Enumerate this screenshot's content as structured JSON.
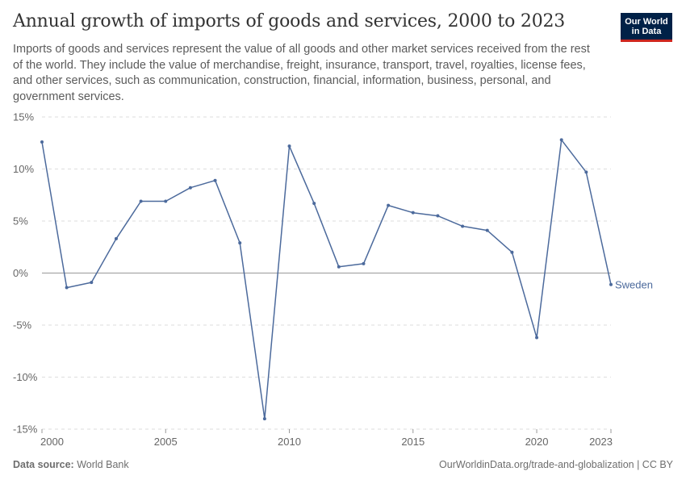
{
  "title": "Annual growth of imports of goods and services, 2000 to 2023",
  "subtitle": "Imports of goods and services represent the value of all goods and other market services received from the rest of the world. They include the value of merchandise, freight, insurance, transport, travel, royalties, license fees, and other services, such as communication, construction, financial, information, business, personal, and government services.",
  "logo": {
    "line1": "Our World",
    "line2": "in Data",
    "bg_color": "#002147",
    "accent_color": "#ce261e"
  },
  "footer": {
    "source_label": "Data source:",
    "source_value": "World Bank",
    "url_text": "OurWorldinData.org/trade-and-globalization | CC BY"
  },
  "colors": {
    "series": "#4c6a9c",
    "grid": "#dddddd",
    "zero_line": "#999999",
    "tick_text": "#666666"
  },
  "chart_data": {
    "type": "line",
    "title": "Annual growth of imports of goods and services, 2000 to 2023",
    "xlabel": "",
    "ylabel": "",
    "xlim": [
      2000,
      2023
    ],
    "ylim": [
      -15,
      15
    ],
    "x_ticks": [
      2000,
      2005,
      2010,
      2015,
      2020,
      2023
    ],
    "y_ticks": [
      -15,
      -10,
      -5,
      0,
      5,
      10,
      15
    ],
    "y_tick_suffix": "%",
    "grid": "horizontal dashed",
    "legend": "end-of-line label",
    "series": [
      {
        "name": "Sweden",
        "color": "#4c6a9c",
        "x": [
          2000,
          2001,
          2002,
          2003,
          2004,
          2005,
          2006,
          2007,
          2008,
          2009,
          2010,
          2011,
          2012,
          2013,
          2014,
          2015,
          2016,
          2017,
          2018,
          2019,
          2020,
          2021,
          2022,
          2023
        ],
        "y": [
          12.6,
          -1.4,
          -0.9,
          3.3,
          6.9,
          6.9,
          8.2,
          8.9,
          2.9,
          -14.0,
          12.2,
          6.7,
          0.6,
          0.9,
          6.5,
          5.8,
          5.5,
          4.5,
          4.1,
          2.0,
          -6.2,
          12.8,
          9.7,
          -1.1
        ]
      }
    ]
  }
}
